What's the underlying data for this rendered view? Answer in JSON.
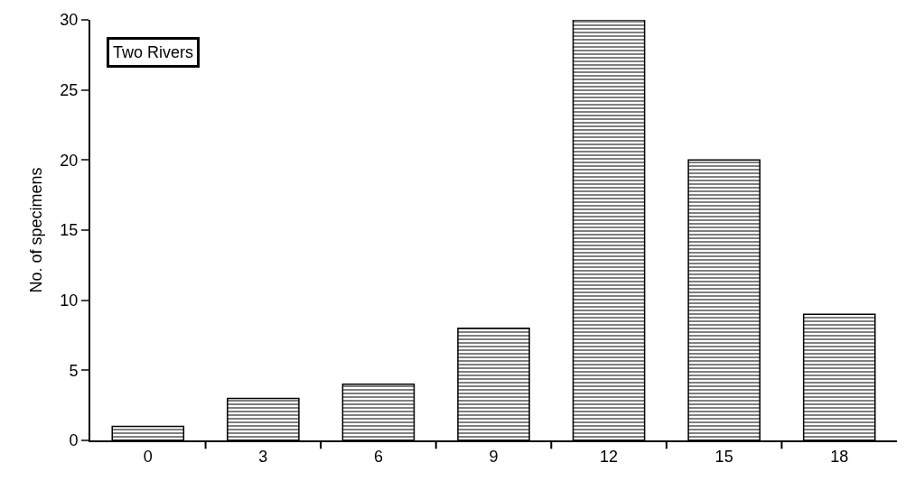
{
  "chart_data": {
    "type": "bar",
    "ylabel": "No. of specimens",
    "annotations": [
      "Two Rivers"
    ],
    "categories": [
      "0",
      "3",
      "6",
      "9",
      "12",
      "15",
      "18"
    ],
    "values": [
      1,
      3,
      4,
      8,
      30,
      20,
      9
    ],
    "color": "#000000",
    "ylim": [
      0,
      30
    ],
    "yticks": [
      0,
      5,
      10,
      15,
      20,
      25,
      30
    ]
  }
}
